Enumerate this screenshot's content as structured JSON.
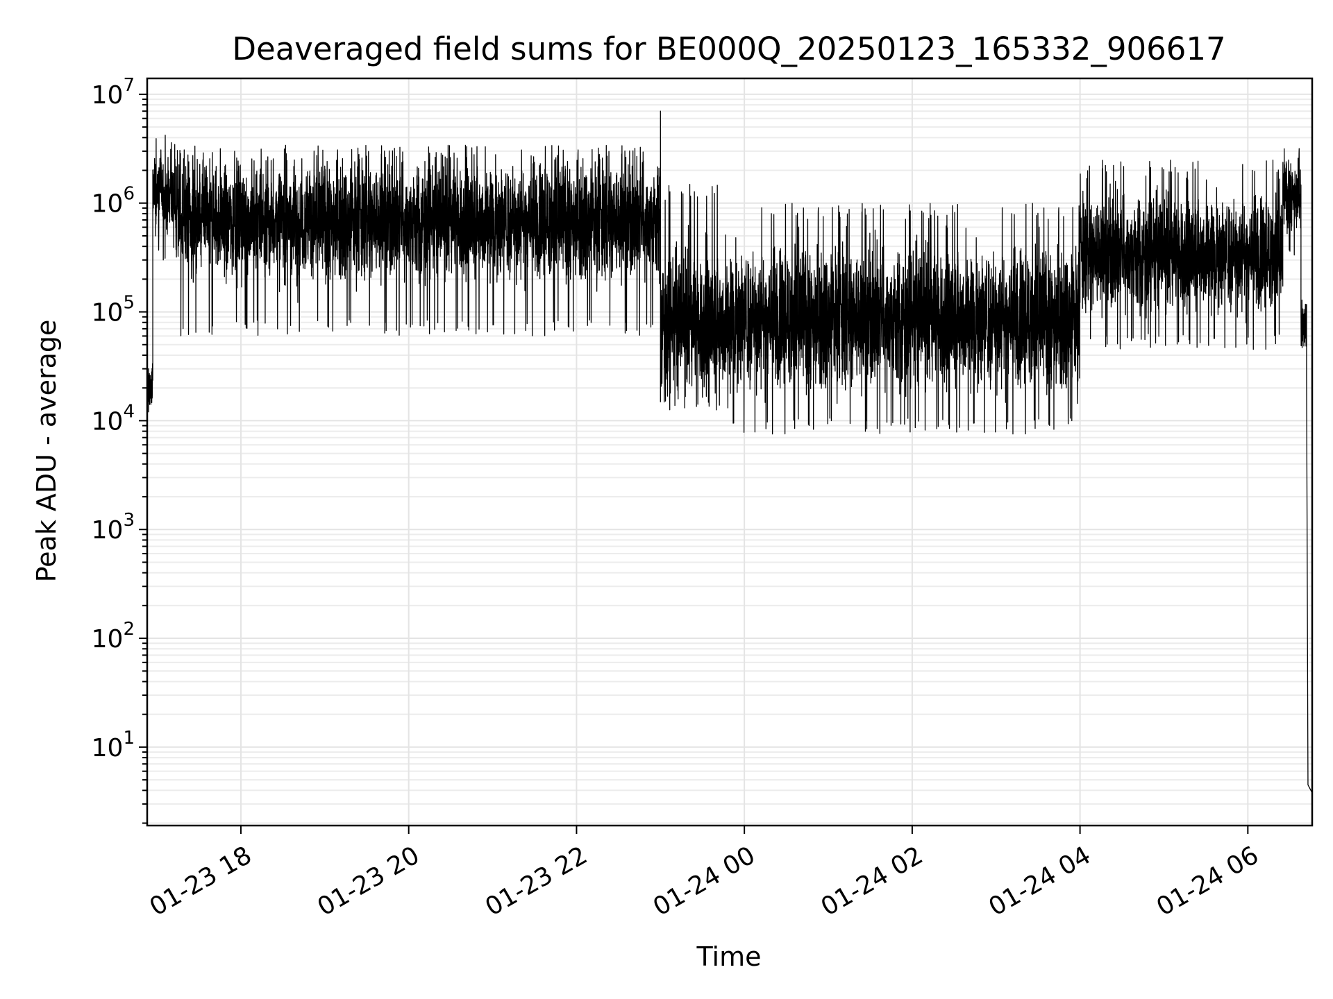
{
  "chart_data": {
    "type": "line",
    "title": "Deaveraged field sums for BE000Q_20250123_165332_906617",
    "xlabel": "Time",
    "ylabel": "Peak ADU - average",
    "y_scale": "log",
    "ylim": [
      1.9,
      14000000
    ],
    "xlim": [
      "2025-01-23 16:53",
      "2025-01-24 06:46"
    ],
    "grid": true,
    "line_color": "#000000",
    "x_ticks": [
      {
        "value": "2025-01-23 18:00",
        "label": "01-23 18"
      },
      {
        "value": "2025-01-23 20:00",
        "label": "01-23 20"
      },
      {
        "value": "2025-01-23 22:00",
        "label": "01-23 22"
      },
      {
        "value": "2025-01-24 00:00",
        "label": "01-24 00"
      },
      {
        "value": "2025-01-24 02:00",
        "label": "01-24 02"
      },
      {
        "value": "2025-01-24 04:00",
        "label": "01-24 04"
      },
      {
        "value": "2025-01-24 06:00",
        "label": "01-24 06"
      }
    ],
    "y_ticks": [
      {
        "value": 10,
        "base": "10",
        "exp": "1"
      },
      {
        "value": 100,
        "base": "10",
        "exp": "2"
      },
      {
        "value": 1000,
        "base": "10",
        "exp": "3"
      },
      {
        "value": 10000,
        "base": "10",
        "exp": "4"
      },
      {
        "value": 100000,
        "base": "10",
        "exp": "5"
      },
      {
        "value": 1000000,
        "base": "10",
        "exp": "6"
      },
      {
        "value": 10000000,
        "base": "10",
        "exp": "7"
      }
    ],
    "series": [
      {
        "style": "noisy",
        "segments": [
          {
            "start": "2025-01-23 16:53",
            "end": "2025-01-23 16:57",
            "center": 20000,
            "low": 9000,
            "high": 80000
          },
          {
            "start": "2025-01-23 16:57",
            "end": "2025-01-23 17:15",
            "center": 1200000,
            "low": 300000,
            "high": 4300000
          },
          {
            "start": "2025-01-23 17:15",
            "end": "2025-01-23 23:00",
            "center": 700000,
            "low": 60000,
            "high": 3400000
          },
          {
            "start": "2025-01-23 23:00",
            "end": "2025-01-23 23:50",
            "center": 80000,
            "low": 12000,
            "high": 1500000
          },
          {
            "start": "2025-01-23 23:50",
            "end": "2025-01-24 04:00",
            "center": 90000,
            "low": 7500,
            "high": 1000000
          },
          {
            "start": "2025-01-24 04:00",
            "end": "2025-01-24 06:25",
            "center": 350000,
            "low": 45000,
            "high": 2500000
          },
          {
            "start": "2025-01-24 06:25",
            "end": "2025-01-24 06:38",
            "center": 1200000,
            "low": 300000,
            "high": 3500000
          },
          {
            "start": "2025-01-24 06:38",
            "end": "2025-01-24 06:42",
            "center": 80000,
            "low": 25000,
            "high": 140000
          }
        ],
        "points": [
          {
            "x": "2025-01-23 16:53",
            "y": 2
          },
          {
            "x": "2025-01-23 16:54",
            "y": 30000
          },
          {
            "x": "2025-01-23 23:00",
            "y": 7000000
          },
          {
            "x": "2025-01-24 06:42",
            "y": 26000
          },
          {
            "x": "2025-01-24 06:43",
            "y": 4.5
          },
          {
            "x": "2025-01-24 06:46",
            "y": 3.8
          }
        ]
      }
    ]
  }
}
